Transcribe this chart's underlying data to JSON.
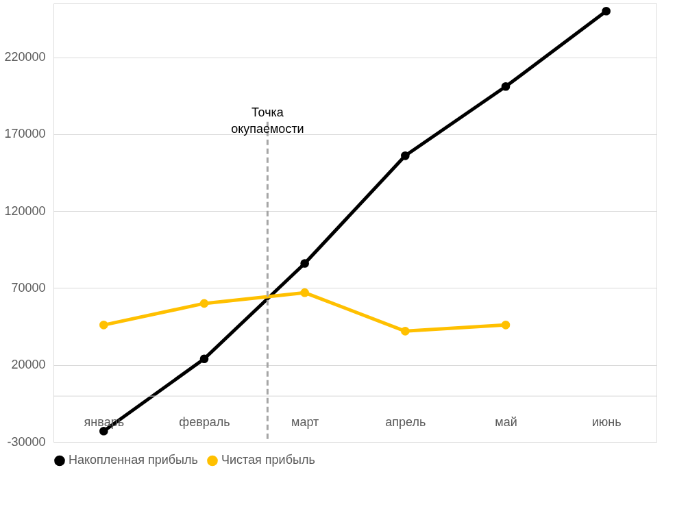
{
  "chart_data": {
    "type": "line",
    "categories": [
      "январь",
      "февраль",
      "март",
      "апрель",
      "май",
      "июнь"
    ],
    "series": [
      {
        "name": "Накопленная прибыль",
        "color": "#000000",
        "values": [
          -23000,
          24000,
          86000,
          156000,
          201000,
          250000
        ]
      },
      {
        "name": "Чистая прибыль",
        "color": "#ffc000",
        "values": [
          46000,
          60000,
          67000,
          42000,
          46000,
          null
        ]
      }
    ],
    "ylim": [
      -30000,
      255000
    ],
    "yticks": [
      -30000,
      20000,
      70000,
      120000,
      170000,
      220000
    ],
    "annotations": [
      "Точка окупаемости"
    ],
    "grid": "y",
    "legend": "bottom",
    "marker": "circle",
    "line_style": "solid"
  }
}
